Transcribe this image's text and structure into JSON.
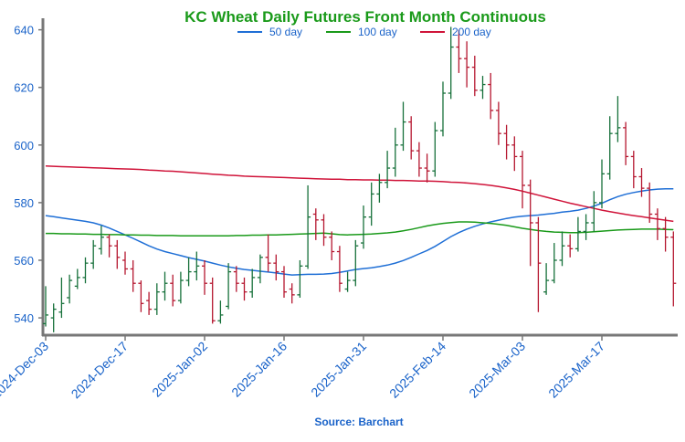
{
  "chart_data": {
    "type": "ohlc",
    "title": "KC Wheat Daily Futures Front Month Continuous",
    "source": "Source: Barchart",
    "categories": [
      "2024-Dec-03",
      null,
      null,
      null,
      null,
      null,
      null,
      null,
      null,
      null,
      "2024-Dec-17",
      null,
      null,
      null,
      null,
      null,
      null,
      null,
      null,
      null,
      "2025-Jan-02",
      null,
      null,
      null,
      null,
      null,
      null,
      null,
      null,
      null,
      "2025-Jan-16",
      null,
      null,
      null,
      null,
      null,
      null,
      null,
      null,
      null,
      "2025-Jan-31",
      null,
      null,
      null,
      null,
      null,
      null,
      null,
      null,
      null,
      "2025-Feb-14",
      null,
      null,
      null,
      null,
      null,
      null,
      null,
      null,
      null,
      "2025-Mar-03",
      null,
      null,
      null,
      null,
      null,
      null,
      null,
      null,
      null,
      "2025-Mar-17",
      null,
      null,
      null,
      null,
      null,
      null,
      null,
      null,
      null
    ],
    "open": [
      538,
      540,
      542,
      547,
      551,
      554,
      559,
      564,
      568,
      565,
      560,
      557,
      552,
      546,
      543,
      549,
      552,
      546,
      553,
      556,
      558,
      552,
      539,
      544,
      556,
      552,
      549,
      554,
      561,
      559,
      556,
      550,
      548,
      558,
      576,
      574,
      568,
      563,
      550,
      553,
      566,
      575,
      583,
      587,
      592,
      600,
      608,
      598,
      592,
      591,
      605,
      618,
      634,
      630,
      627,
      619,
      621,
      612,
      604,
      600,
      596,
      586,
      573,
      549,
      553,
      560,
      565,
      564,
      570,
      573,
      580,
      590,
      604,
      606,
      596,
      589,
      585,
      576,
      571,
      568
    ],
    "high": [
      551,
      545,
      554,
      555,
      557,
      561,
      567,
      572,
      569,
      567,
      563,
      560,
      553,
      549,
      552,
      556,
      555,
      556,
      561,
      563,
      560,
      554,
      546,
      559,
      558,
      554,
      557,
      562,
      569,
      562,
      558,
      552,
      560,
      586,
      578,
      576,
      570,
      565,
      556,
      567,
      579,
      587,
      590,
      598,
      606,
      615,
      610,
      601,
      597,
      608,
      622,
      641,
      640,
      636,
      631,
      624,
      625,
      615,
      607,
      603,
      598,
      588,
      575,
      559,
      566,
      570,
      569,
      575,
      576,
      584,
      595,
      610,
      617,
      608,
      598,
      592,
      587,
      578,
      575,
      570
    ],
    "low": [
      537,
      535,
      540,
      545,
      550,
      552,
      557,
      562,
      561,
      557,
      555,
      549,
      542,
      541,
      541,
      546,
      544,
      545,
      551,
      553,
      548,
      538,
      538,
      543,
      549,
      546,
      547,
      552,
      556,
      553,
      547,
      545,
      547,
      557,
      567,
      565,
      560,
      549,
      549,
      551,
      564,
      572,
      580,
      585,
      589,
      598,
      595,
      589,
      587,
      589,
      603,
      616,
      625,
      620,
      617,
      616,
      609,
      600,
      595,
      591,
      578,
      558,
      542,
      548,
      552,
      558,
      561,
      563,
      567,
      570,
      578,
      588,
      601,
      593,
      585,
      582,
      573,
      567,
      563,
      544
    ],
    "close": [
      541,
      543,
      545,
      553,
      554,
      559,
      565,
      568,
      565,
      561,
      557,
      552,
      545,
      543,
      549,
      552,
      546,
      553,
      556,
      558,
      552,
      539,
      541,
      556,
      552,
      549,
      554,
      561,
      559,
      556,
      549,
      548,
      558,
      575,
      574,
      568,
      563,
      552,
      553,
      565,
      575,
      583,
      587,
      592,
      600,
      608,
      598,
      592,
      591,
      605,
      618,
      634,
      630,
      627,
      619,
      621,
      612,
      604,
      600,
      596,
      586,
      573,
      559,
      553,
      560,
      565,
      564,
      570,
      573,
      580,
      590,
      604,
      606,
      596,
      589,
      585,
      576,
      571,
      568,
      552
    ],
    "up_color": "#16703a",
    "down_color": "#b5162f",
    "series": [
      {
        "name": "50 day",
        "color": "#1f6fd6",
        "values": [
          575.5,
          575.1,
          574.7,
          574.3,
          573.9,
          573.5,
          573.0,
          572.2,
          571.2,
          570.0,
          568.8,
          567.6,
          566.3,
          565.0,
          563.9,
          563.0,
          562.3,
          561.6,
          560.9,
          560.3,
          559.7,
          559.0,
          558.3,
          557.7,
          557.2,
          556.8,
          556.5,
          556.2,
          555.9,
          555.6,
          555.2,
          554.9,
          555.0,
          555.1,
          555.1,
          555.2,
          555.4,
          555.8,
          556.3,
          556.8,
          557.1,
          557.4,
          557.8,
          558.3,
          559.0,
          559.9,
          561.0,
          562.2,
          563.4,
          564.8,
          566.5,
          568.2,
          569.6,
          570.8,
          571.8,
          572.6,
          573.3,
          573.9,
          574.5,
          575.0,
          575.3,
          575.5,
          575.7,
          576.0,
          576.3,
          576.7,
          577.0,
          577.4,
          578.0,
          578.8,
          579.8,
          581.0,
          582.1,
          582.9,
          583.5,
          584.0,
          584.4,
          584.7,
          584.8,
          584.8
        ]
      },
      {
        "name": "100 day",
        "color": "#1a9a1a",
        "values": [
          569.3,
          569.3,
          569.2,
          569.2,
          569.1,
          569.1,
          569.0,
          569.0,
          568.9,
          568.9,
          568.8,
          568.8,
          568.7,
          568.7,
          568.6,
          568.6,
          568.6,
          568.5,
          568.5,
          568.5,
          568.5,
          568.5,
          568.5,
          568.5,
          568.6,
          568.6,
          568.7,
          568.7,
          568.8,
          568.8,
          568.9,
          569.0,
          569.1,
          569.2,
          569.3,
          569.4,
          569.2,
          568.9,
          568.8,
          568.9,
          569.0,
          569.1,
          569.3,
          569.5,
          569.8,
          570.2,
          570.7,
          571.3,
          571.9,
          572.4,
          572.8,
          573.1,
          573.3,
          573.3,
          573.2,
          573.0,
          572.8,
          572.5,
          572.1,
          571.6,
          571.1,
          570.7,
          570.3,
          570.0,
          569.8,
          569.7,
          569.6,
          569.6,
          569.7,
          569.9,
          570.1,
          570.3,
          570.5,
          570.6,
          570.7,
          570.8,
          570.8,
          570.8,
          570.7,
          570.6
        ]
      },
      {
        "name": "200 day",
        "color": "#d0143a",
        "values": [
          592.7,
          592.6,
          592.5,
          592.4,
          592.3,
          592.2,
          592.1,
          592.0,
          591.9,
          591.8,
          591.7,
          591.6,
          591.5,
          591.3,
          591.2,
          591.0,
          590.9,
          590.7,
          590.5,
          590.3,
          590.1,
          589.9,
          589.7,
          589.5,
          589.4,
          589.2,
          589.1,
          589.0,
          588.9,
          588.8,
          588.7,
          588.6,
          588.5,
          588.4,
          588.3,
          588.2,
          588.1,
          588.1,
          588.0,
          588.0,
          587.9,
          587.9,
          587.8,
          587.8,
          587.7,
          587.7,
          587.6,
          587.5,
          587.5,
          587.4,
          587.3,
          587.1,
          587.0,
          586.8,
          586.6,
          586.3,
          586.0,
          585.6,
          585.1,
          584.6,
          584.0,
          583.3,
          582.6,
          581.9,
          581.2,
          580.5,
          579.8,
          579.2,
          578.6,
          578.0,
          577.4,
          576.9,
          576.4,
          575.9,
          575.5,
          575.1,
          574.7,
          574.3,
          573.9,
          573.5
        ]
      }
    ],
    "ylim": [
      534,
      644
    ],
    "yticks": [
      540,
      560,
      580,
      600,
      620,
      640
    ]
  }
}
